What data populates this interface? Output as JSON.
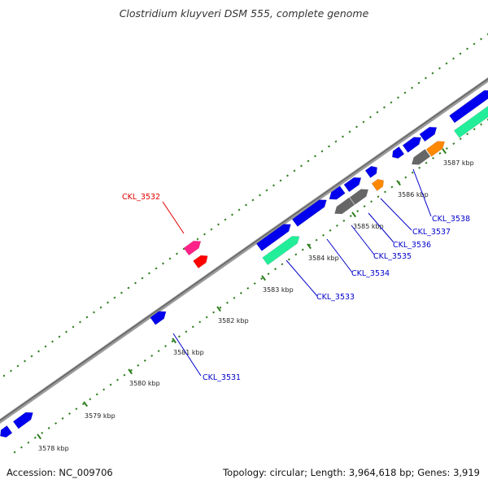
{
  "title": "Clostridium kluyveri DSM 555, complete genome",
  "footer": {
    "accession": "Accession: NC_009706",
    "summary": "Topology: circular; Length: 3,964,618 bp; Genes: 3,919"
  },
  "colors": {
    "backbone": "#7f7f7f",
    "tick": "#2e7d1e",
    "gene_blue": "#0000ee",
    "gene_gray": "#666666",
    "gene_orange": "#ff8800",
    "gene_green": "#22ee99",
    "gene_pink": "#ff2288",
    "gene_red": "#ff0000",
    "label_blue": "#0000cc",
    "label_red": "#e00000"
  },
  "ticks": [
    "3578 kbp",
    "3579 kbp",
    "3580 kbp",
    "3581 kbp",
    "3582 kbp",
    "3583 kbp",
    "3584 kbp",
    "3585 kbp",
    "3586 kbp",
    "3587 kbp"
  ],
  "gene_labels": [
    {
      "text": "CKL_3531",
      "color": "blue"
    },
    {
      "text": "CKL_3532",
      "color": "red"
    },
    {
      "text": "CKL_3533",
      "color": "blue"
    },
    {
      "text": "CKL_3534",
      "color": "blue"
    },
    {
      "text": "CKL_3535",
      "color": "blue"
    },
    {
      "text": "CKL_3536",
      "color": "blue"
    },
    {
      "text": "CKL_3537",
      "color": "blue"
    },
    {
      "text": "CKL_3538",
      "color": "blue"
    }
  ]
}
